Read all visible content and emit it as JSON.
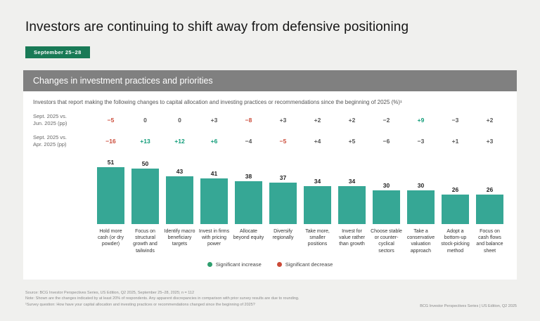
{
  "page": {
    "title": "Investors are continuing to shift away from defensive positioning",
    "date_badge": "September 25–28"
  },
  "card": {
    "header": "Changes in investment practices and priorities",
    "subtitle": "Investors that report making the following changes to capital allocation and investing practices or recommendations since the beginning of 2025 (%)¹"
  },
  "chart_data": {
    "type": "bar",
    "title": "Changes in investment practices and priorities",
    "categories": [
      "Hold more cash (or dry powder)",
      "Focus on structural growth and tailwinds",
      "Identify macro beneficiary targets",
      "Invest in firms with pricing power",
      "Allocate beyond equity",
      "Diversify regionally",
      "Take more, smaller positions",
      "Invest for value rather than growth",
      "Choose stable or counter-cyclical sectors",
      "Take a conservative valuation approach",
      "Adopt a bottom-up stock-picking method",
      "Focus on cash flows and balance sheet"
    ],
    "values": [
      51,
      50,
      43,
      41,
      38,
      37,
      34,
      34,
      30,
      30,
      26,
      26
    ],
    "ylim": [
      0,
      60
    ],
    "bar_color": "#36a795",
    "delta_colors": {
      "increase": "#0e9b77",
      "decrease": "#cb4a38",
      "neutral": "#555555"
    },
    "delta_rows": [
      {
        "label": "Sept. 2025 vs.\nJun. 2025 (pp)",
        "values": [
          "−5",
          "0",
          "0",
          "+3",
          "−8",
          "+3",
          "+2",
          "+2",
          "−2",
          "+9",
          "−3",
          "+2"
        ],
        "colors": [
          "decrease",
          "neutral",
          "neutral",
          "neutral",
          "decrease",
          "neutral",
          "neutral",
          "neutral",
          "neutral",
          "increase",
          "neutral",
          "neutral"
        ]
      },
      {
        "label": "Sept. 2025 vs.\nApr. 2025 (pp)",
        "values": [
          "−16",
          "+13",
          "+12",
          "+6",
          "−4",
          "−5",
          "+4",
          "+5",
          "−6",
          "−3",
          "+1",
          "+3"
        ],
        "colors": [
          "decrease",
          "increase",
          "increase",
          "increase",
          "neutral",
          "decrease",
          "neutral",
          "neutral",
          "neutral",
          "neutral",
          "neutral",
          "neutral"
        ]
      }
    ],
    "legend": [
      {
        "label": "Significant increase",
        "color": "#2e9e6e",
        "icon": "increase-dot-icon"
      },
      {
        "label": "Significant decrease",
        "color": "#cb4a38",
        "icon": "decrease-dot-icon"
      }
    ],
    "legend_position": "bottom-center",
    "grid": false
  },
  "footer": {
    "source": "Source: BCG Investor Perspectives Series, US Edition, Q2 2025, September 25–28, 2025; n = 112",
    "note": "Note: Shown are the changes indicated by at least 20% of respondents. Any apparent discrepancies in comparison with prior survey results are due to rounding.",
    "survey_question": "¹Survey question: How have your capital allocation and investing practices or recommendations changed since the beginning of 2025?",
    "right": "BCG Investor Perspectives Series | US Edition, Q2 2025"
  }
}
